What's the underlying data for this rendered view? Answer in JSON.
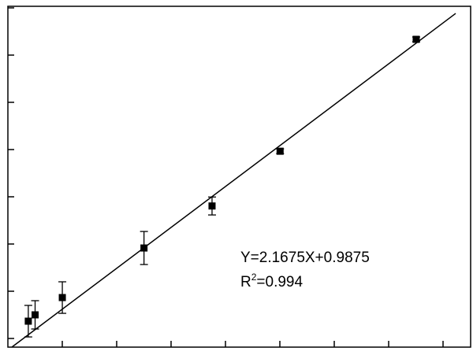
{
  "chart_data": {
    "type": "scatter",
    "title": "",
    "xlabel": "",
    "ylabel": "",
    "xlim": [
      0,
      17
    ],
    "ylim": [
      1.3,
      37.4
    ],
    "x_tick_labels_shown": false,
    "y_tick_labels_shown": false,
    "grid": false,
    "legend": "none",
    "marker": "square",
    "color": "#000000",
    "points": [
      {
        "x": 0.75,
        "y": 4.05,
        "err": 1.67
      },
      {
        "x": 1.0,
        "y": 4.72,
        "err": 1.5
      },
      {
        "x": 2.0,
        "y": 6.55,
        "err": 1.67
      },
      {
        "x": 5.0,
        "y": 11.8,
        "err": 1.75
      },
      {
        "x": 7.5,
        "y": 16.25,
        "err": 0.95
      },
      {
        "x": 10.0,
        "y": 22.05,
        "err": 0.25
      },
      {
        "x": 15.0,
        "y": 33.9,
        "err": 0.25
      }
    ],
    "fit": {
      "slope": 2.1675,
      "intercept": 0.9875,
      "x_range": [
        0.15,
        16.45
      ]
    },
    "annotations": {
      "equation": "Y=2.1675X+0.9875",
      "r2_prefix": "R",
      "r2_sup": "2",
      "r2_value": "=0.994"
    }
  }
}
